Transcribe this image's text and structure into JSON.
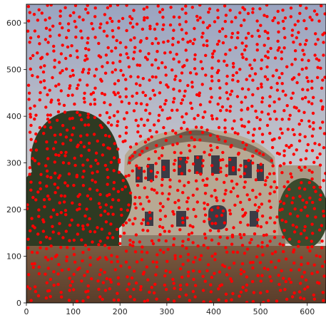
{
  "chart_data": {
    "type": "scatter",
    "title": "",
    "xlabel": "",
    "ylabel": "",
    "xlim": [
      0,
      640
    ],
    "ylim": [
      640,
      0
    ],
    "xticks": [
      0,
      100,
      200,
      300,
      400,
      500,
      600
    ],
    "yticks": [
      0,
      100,
      200,
      300,
      400,
      500,
      600
    ],
    "xtick_labels": [
      "0",
      "100",
      "200",
      "300",
      "400",
      "500",
      "600"
    ],
    "ytick_labels": [
      "0",
      "100",
      "200",
      "300",
      "400",
      "500",
      "600"
    ],
    "grid": false,
    "marker_color": "#ff0000",
    "background_image": "photograph of a rounded stone building with a tree on the left and dry grass in the foreground",
    "point_grid": {
      "x_from": 8,
      "x_to": 632,
      "x_step": 16,
      "y_from": 8,
      "y_to": 632,
      "y_step": 16
    }
  },
  "colors": {
    "sky_top": "#9aa4c0",
    "sky_bottom": "#e8ded4",
    "tree": "#2f3b22",
    "building": "#b9ab98",
    "roof": "#6b5a4a",
    "grass": "#6a4a34",
    "window": "#3a3a44"
  }
}
